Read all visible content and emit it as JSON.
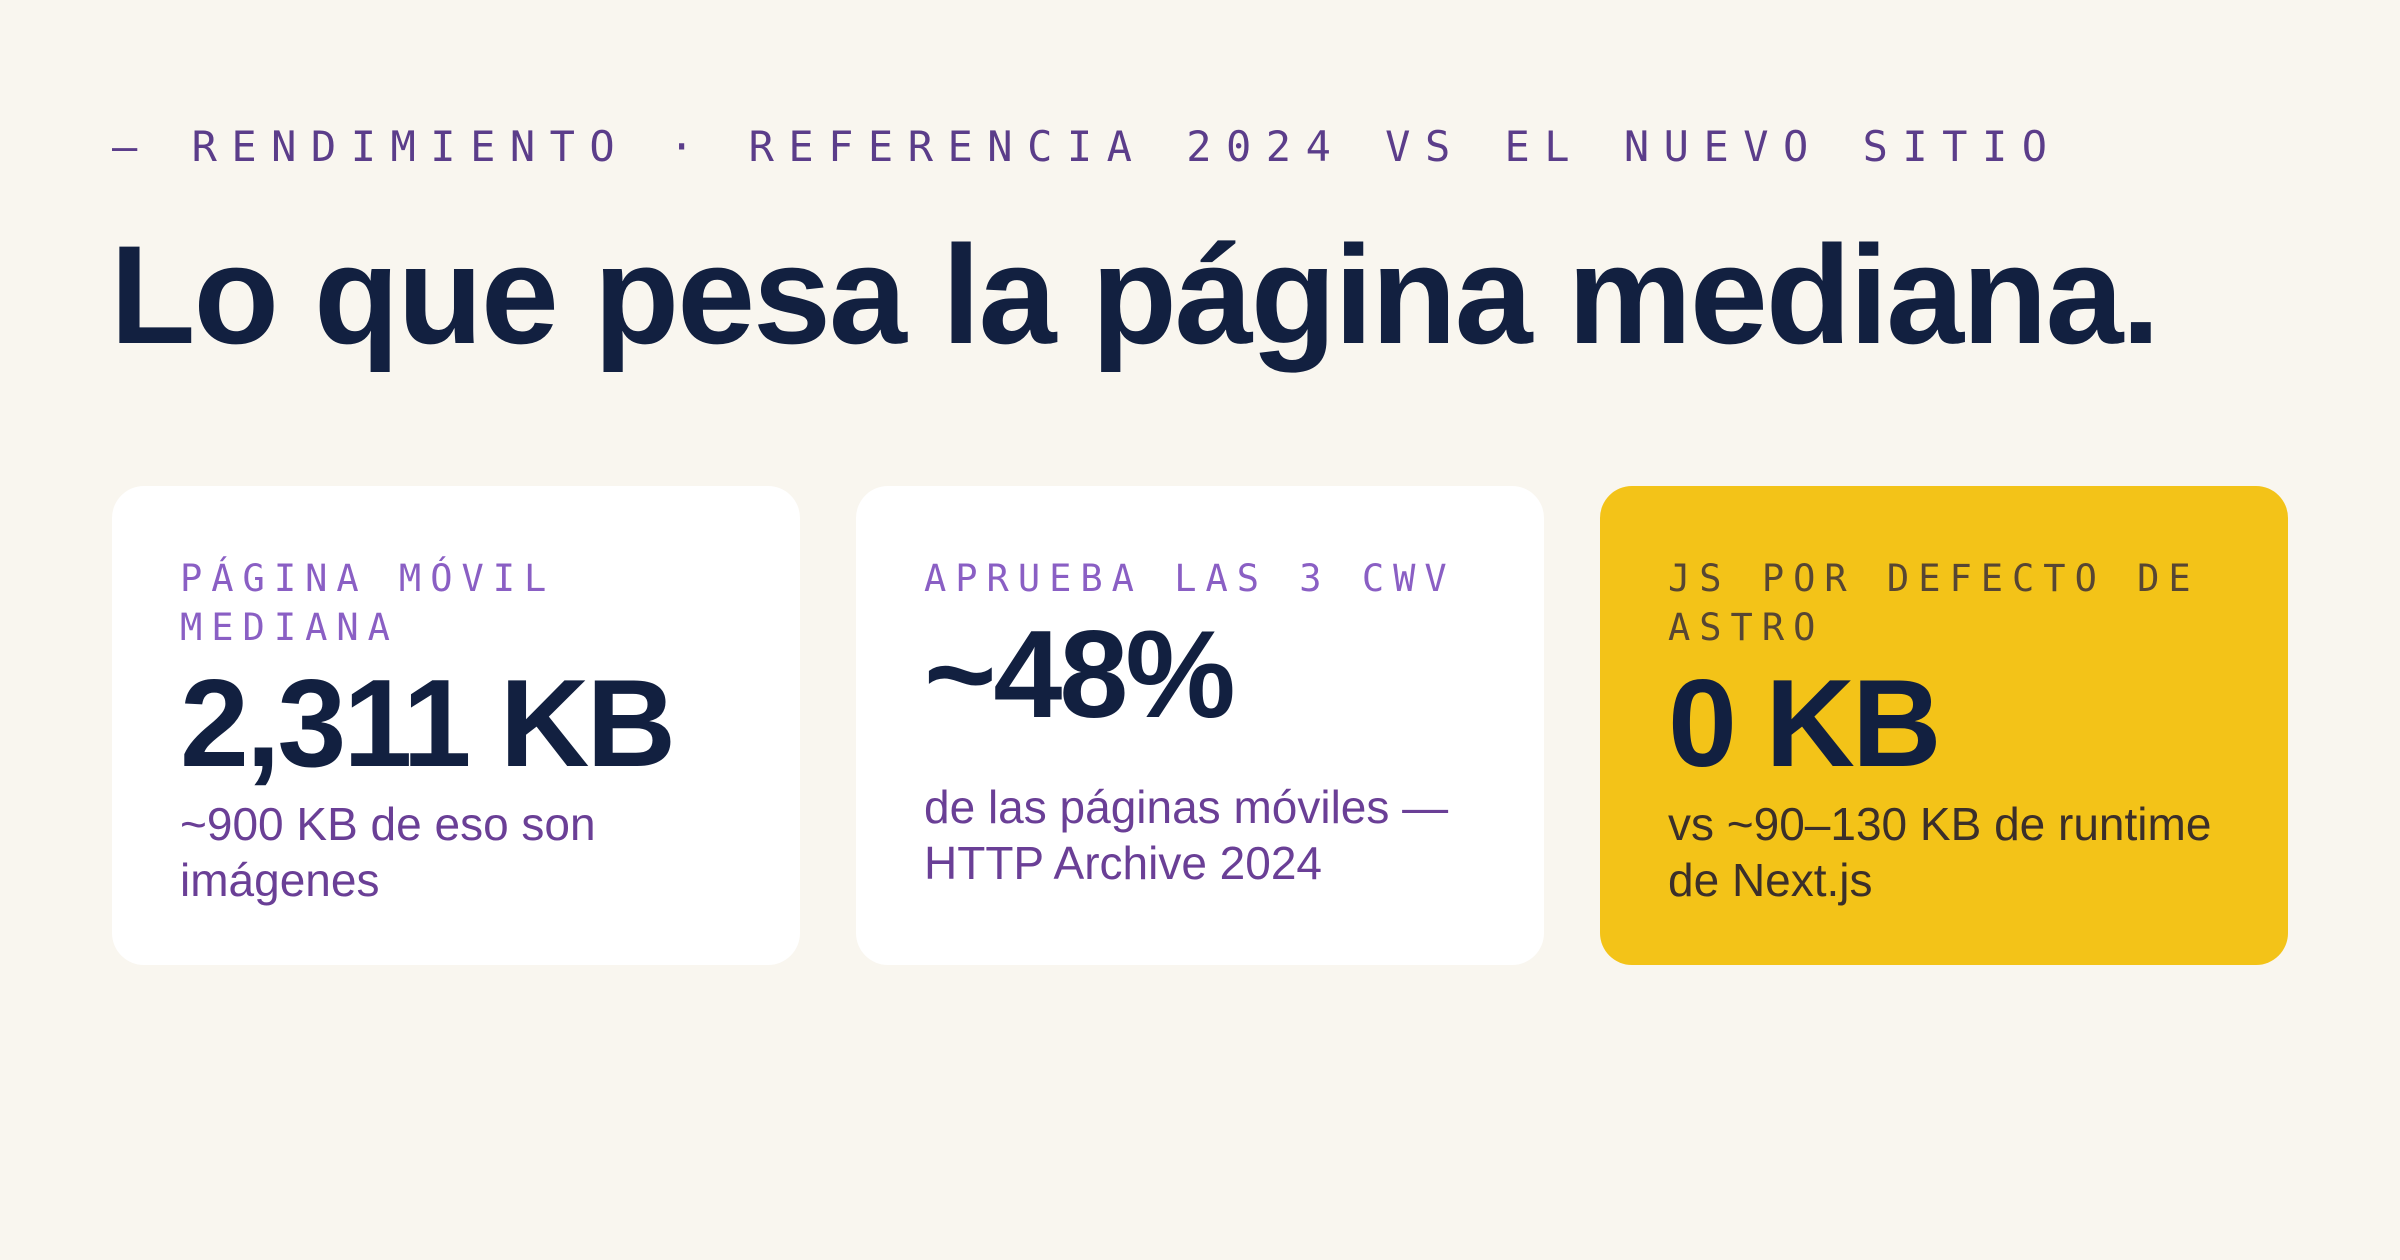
{
  "eyebrow": "— RENDIMIENTO · REFERENCIA 2024 VS EL NUEVO SITIO",
  "headline": "Lo que pesa la página mediana.",
  "cards": [
    {
      "label": "PÁGINA MÓVIL MEDIANA",
      "value": "2,311 KB",
      "note": "~900 KB de eso son imágenes"
    },
    {
      "label": "APRUEBA LAS 3 CWV",
      "value": "~48%",
      "note": "de las páginas móviles — HTTP Archive 2024"
    },
    {
      "label": "JS POR DEFECTO DE ASTRO",
      "value": "0 KB",
      "note": "vs ~90–130 KB de runtime de Next.js"
    }
  ],
  "colors": {
    "background": "#f9f6ef",
    "ink": "#122040",
    "accent_purple": "#6a3f96",
    "label_purple": "#8a5fc4",
    "highlight_yellow": "#f3c318",
    "card": "#ffffff"
  }
}
